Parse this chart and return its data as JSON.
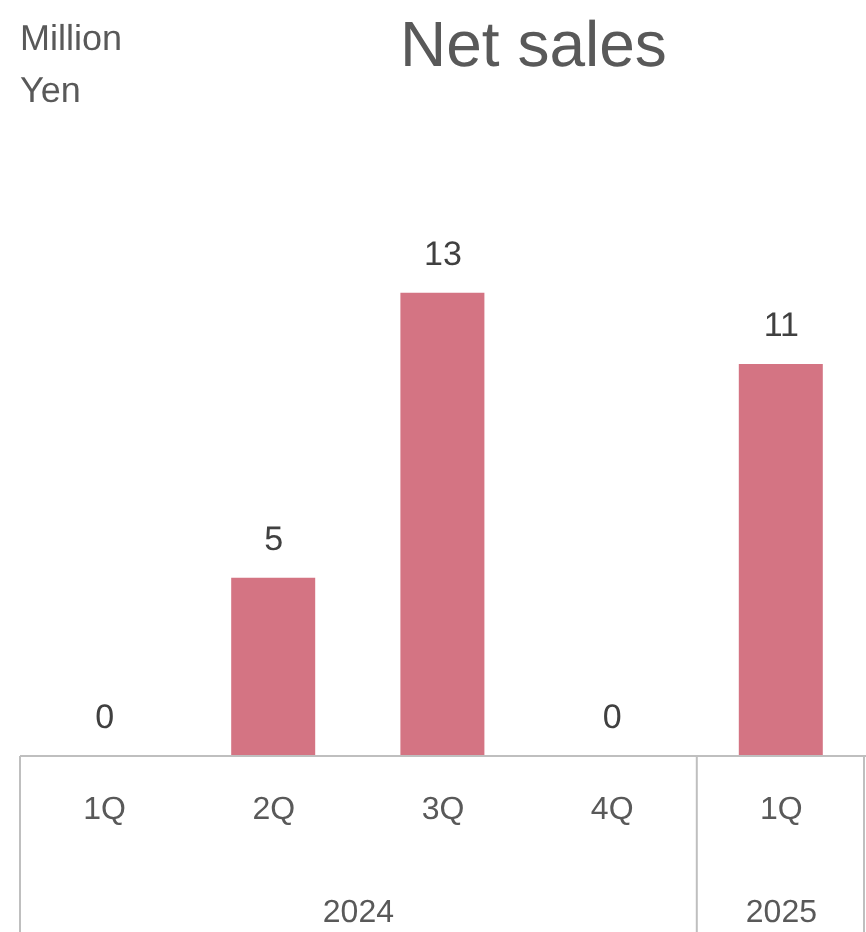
{
  "chart_data": {
    "type": "bar",
    "title": "Net sales",
    "categories": [
      "1Q",
      "2Q",
      "3Q",
      "4Q",
      "1Q"
    ],
    "values": [
      0,
      5,
      13,
      0,
      11
    ],
    "color": "#d47483",
    "data_labels": true,
    "annotations": [
      "Million Yen",
      "2024",
      "2025"
    ]
  }
}
